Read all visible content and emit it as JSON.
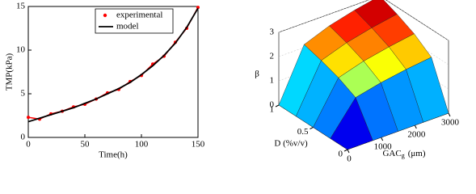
{
  "chart_data": [
    {
      "type": "line",
      "xlabel": "Time(h)",
      "ylabel": "TMP(kPa)",
      "x": [
        0,
        10,
        20,
        30,
        40,
        50,
        60,
        70,
        80,
        90,
        100,
        110,
        120,
        130,
        140,
        150
      ],
      "series": [
        {
          "name": "experimental",
          "color": "#ff0000",
          "marker": true,
          "values": [
            2.3,
            2.1,
            2.7,
            3.0,
            3.5,
            3.8,
            4.4,
            5.1,
            5.5,
            6.4,
            7.1,
            8.4,
            9.3,
            10.9,
            12.5,
            14.9
          ]
        },
        {
          "name": "model",
          "color": "#000000",
          "marker": false,
          "values": [
            1.8,
            2.2,
            2.6,
            3.0,
            3.4,
            3.9,
            4.4,
            5.0,
            5.6,
            6.3,
            7.2,
            8.2,
            9.4,
            10.8,
            12.6,
            14.8
          ]
        }
      ],
      "xlim": [
        0,
        150
      ],
      "ylim": [
        0,
        15
      ],
      "xticks": [
        0,
        50,
        100,
        150
      ],
      "yticks": [
        0,
        5,
        10,
        15
      ],
      "legend": "upper right"
    },
    {
      "type": "surface",
      "zlabel": "β",
      "xlabel": "D (%v/v)",
      "ylabel": {
        "text": "GAC",
        "subscript": "g",
        "unit": "(μm)"
      },
      "x": [
        0,
        0.25,
        0.5,
        0.75,
        1
      ],
      "y": [
        0,
        750,
        1500,
        2250,
        3000
      ],
      "z": [
        [
          0,
          0,
          0,
          0,
          0
        ],
        [
          0,
          1.31,
          1.55,
          1.72,
          1.85
        ],
        [
          0,
          1.67,
          1.98,
          2.19,
          2.36
        ],
        [
          0,
          1.92,
          2.28,
          2.52,
          2.71
        ],
        [
          0,
          2.12,
          2.52,
          2.79,
          3.0
        ]
      ],
      "xlim": [
        0,
        1
      ],
      "ylim": [
        0,
        3000
      ],
      "zlim": [
        0,
        3
      ],
      "xticks": [
        0,
        0.5,
        1
      ],
      "yticks": [
        0,
        1000,
        2000,
        3000
      ],
      "zticks": [
        0,
        1,
        2,
        3
      ],
      "colormap": "jet"
    }
  ]
}
